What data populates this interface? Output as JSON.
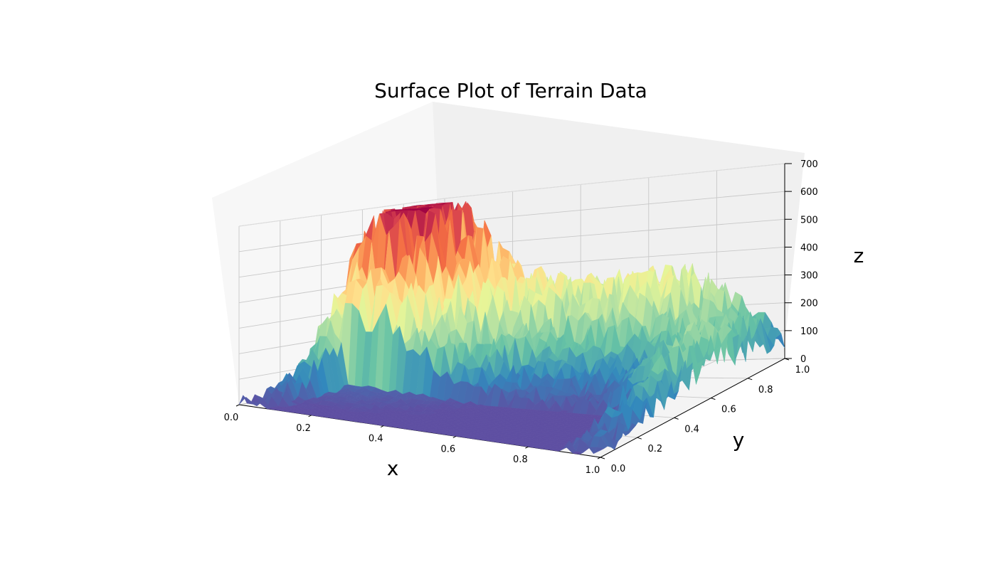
{
  "chart_data": {
    "type": "surface3d",
    "title": "Surface Plot of Terrain Data",
    "xlabel": "x",
    "ylabel": "y",
    "zlabel": "z",
    "xlim": [
      0.0,
      1.0
    ],
    "ylim": [
      0.0,
      1.0
    ],
    "zlim": [
      0,
      700
    ],
    "x_ticks": [
      "0.0",
      "0.2",
      "0.4",
      "0.6",
      "0.8",
      "1.0"
    ],
    "y_ticks": [
      "0.0",
      "0.2",
      "0.4",
      "0.6",
      "0.8",
      "1.0"
    ],
    "z_ticks": [
      "0",
      "100",
      "200",
      "300",
      "400",
      "500",
      "600",
      "700"
    ],
    "colormap": "Spectral_r",
    "colormap_stops": [
      "#5e4fa2",
      "#3288bd",
      "#66c2a5",
      "#abdda4",
      "#e6f598",
      "#fee08b",
      "#fdae61",
      "#f46d43",
      "#d53e4f",
      "#9e0142"
    ],
    "grid": true,
    "z_max_approx": 690
  }
}
